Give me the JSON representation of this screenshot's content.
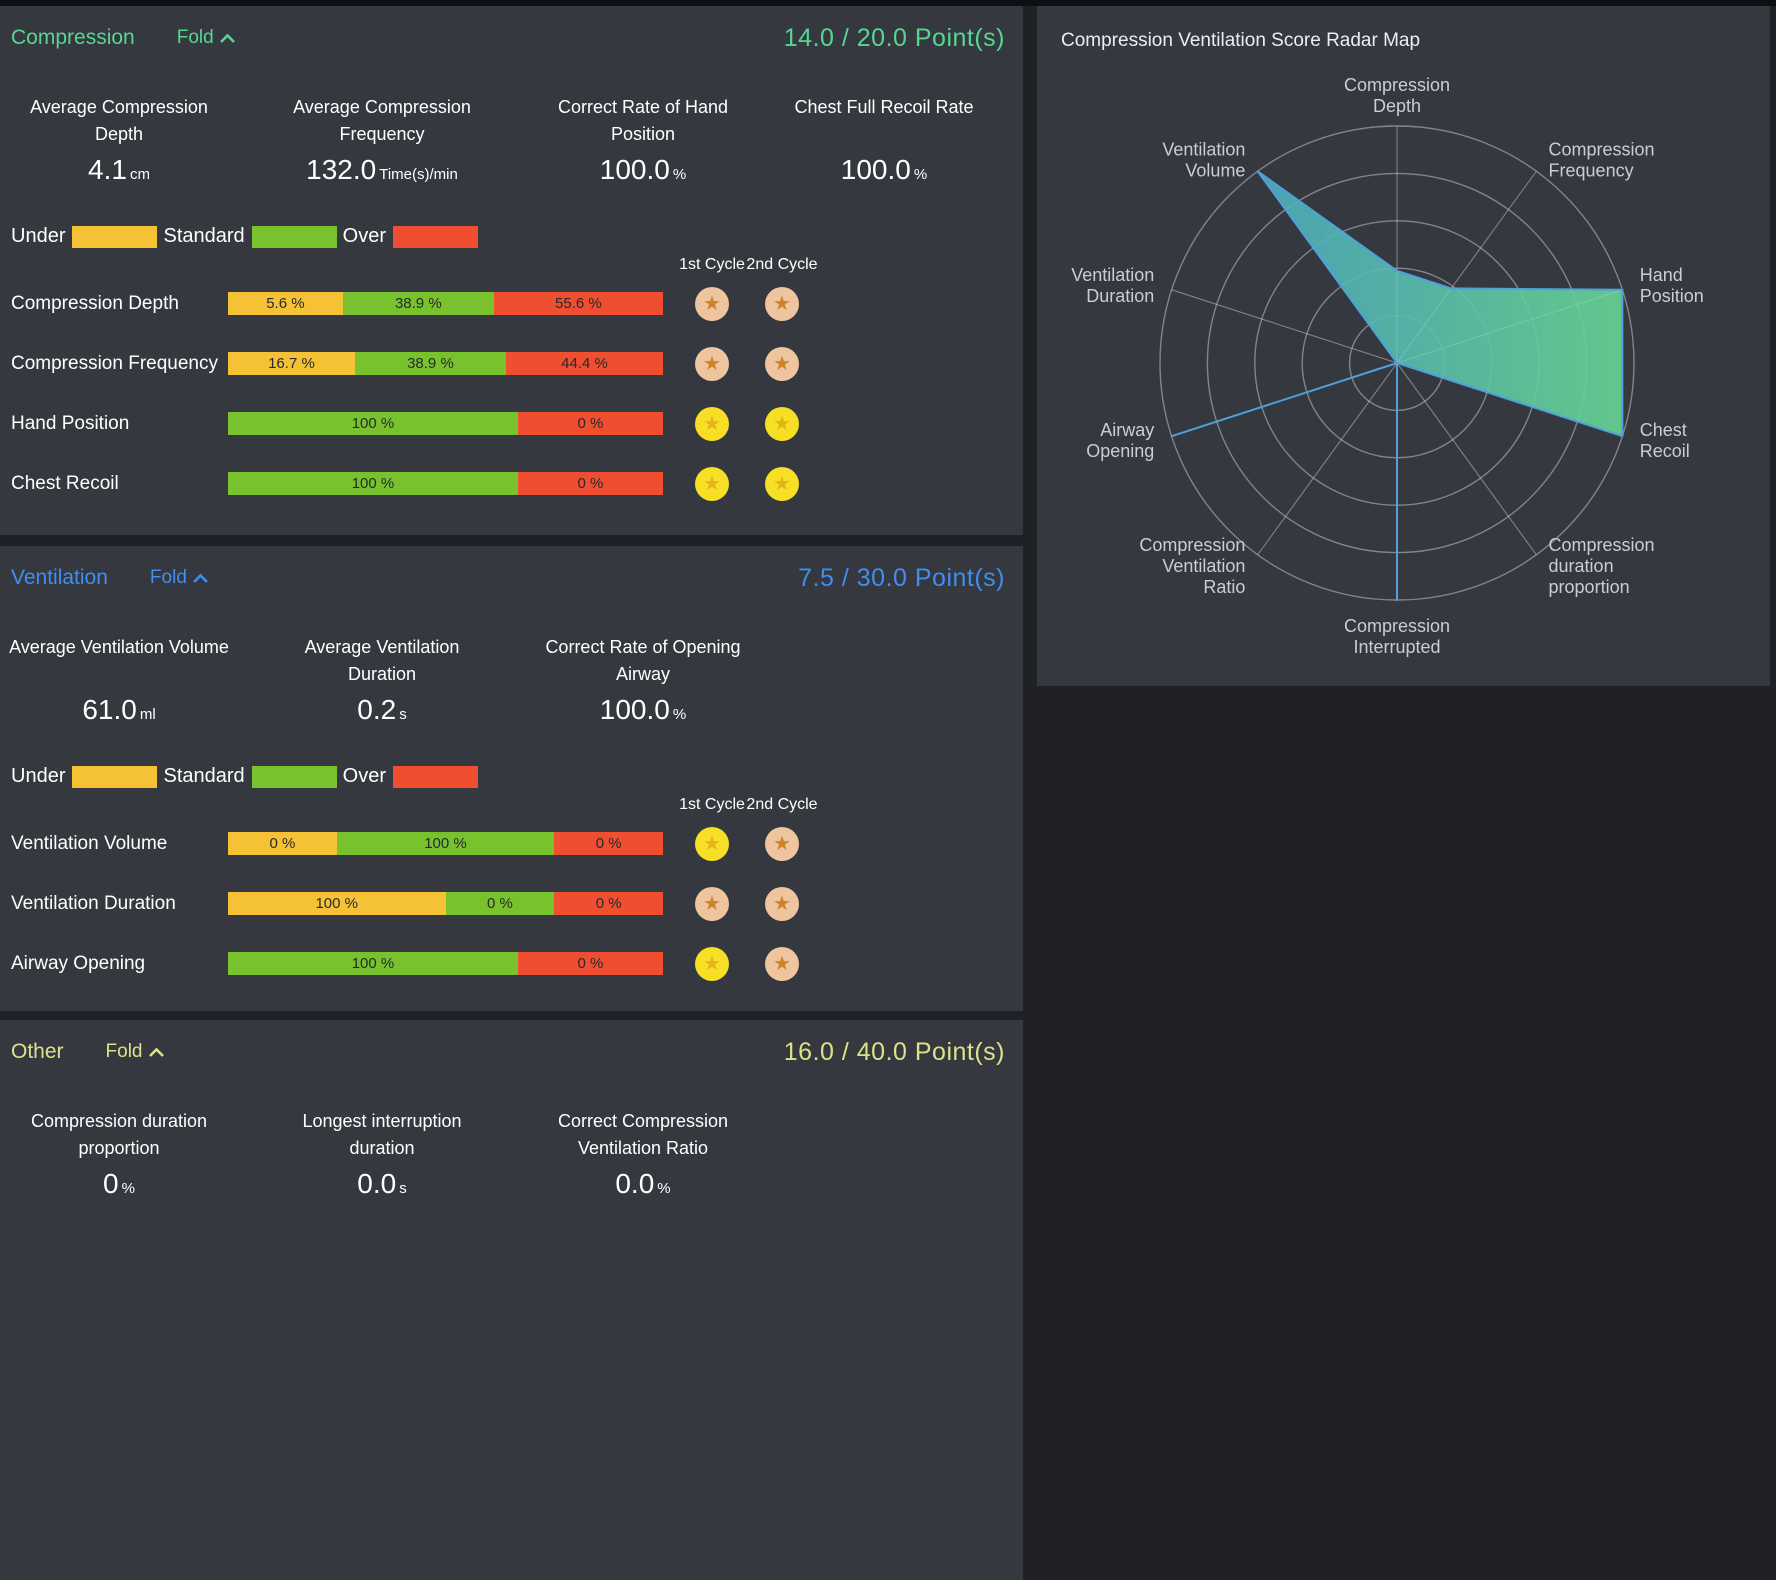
{
  "page": {
    "background": "#1f2126",
    "panel_background": "#35383e"
  },
  "segment_colors": {
    "under": "#f5c235",
    "standard": "#78c32d",
    "over": "#f04e31"
  },
  "star_colors": {
    "gold": {
      "bg": "#f7df26",
      "star": "#e2b517"
    },
    "bronze": {
      "bg": "#eec59e",
      "star": "#cd8427"
    }
  },
  "sections": [
    {
      "id": "compression",
      "accent": "#55d792",
      "title": "Compression",
      "fold_label": "Fold",
      "score": "14.0",
      "score_total": "20.0",
      "score_suffix": "Point(s)",
      "metrics": [
        {
          "lines": [
            "Average Compression",
            "Depth"
          ],
          "value": "4.1",
          "unit": "cm"
        },
        {
          "lines": [
            "Average Compression",
            "Frequency"
          ],
          "value": "132.0",
          "unit": "Time(s)/min"
        },
        {
          "lines": [
            "Correct Rate of Hand",
            "Position"
          ],
          "value": "100.0",
          "unit": "%"
        },
        {
          "lines": [
            "Chest Full Recoil Rate"
          ],
          "value": "100.0",
          "unit": "%"
        }
      ],
      "legend": [
        {
          "label": "Under",
          "type": "under"
        },
        {
          "label": "Standard",
          "type": "standard"
        },
        {
          "label": "Over",
          "type": "over"
        }
      ],
      "cycle_headers": [
        "1st Cycle",
        "2nd Cycle"
      ],
      "rows": [
        {
          "label": "Compression Depth",
          "segments": [
            {
              "type": "under",
              "value": 5.6,
              "text": "5.6 %"
            },
            {
              "type": "standard",
              "value": 38.9,
              "text": "38.9 %"
            },
            {
              "type": "over",
              "value": 55.6,
              "text": "55.6 %"
            }
          ],
          "stars": [
            "bronze",
            "bronze"
          ]
        },
        {
          "label": "Compression Frequency",
          "segments": [
            {
              "type": "under",
              "value": 16.7,
              "text": "16.7 %"
            },
            {
              "type": "standard",
              "value": 38.9,
              "text": "38.9 %"
            },
            {
              "type": "over",
              "value": 44.4,
              "text": "44.4 %"
            }
          ],
          "stars": [
            "bronze",
            "bronze"
          ]
        },
        {
          "label": "Hand Position",
          "segments": [
            {
              "type": "standard",
              "value": 100,
              "text": "100 %"
            },
            {
              "type": "over",
              "value": 0,
              "text": "0 %"
            }
          ],
          "stars": [
            "gold",
            "gold"
          ]
        },
        {
          "label": "Chest Recoil",
          "segments": [
            {
              "type": "standard",
              "value": 100,
              "text": "100 %"
            },
            {
              "type": "over",
              "value": 0,
              "text": "0 %"
            }
          ],
          "stars": [
            "gold",
            "gold"
          ]
        }
      ]
    },
    {
      "id": "ventilation",
      "accent": "#3f8ef2",
      "title": "Ventilation",
      "fold_label": "Fold",
      "score": "7.5",
      "score_total": "30.0",
      "score_suffix": "Point(s)",
      "metrics": [
        {
          "lines": [
            "Average Ventilation Volume"
          ],
          "value": "61.0",
          "unit": "ml"
        },
        {
          "lines": [
            "Average Ventilation",
            "Duration"
          ],
          "value": "0.2",
          "unit": "s"
        },
        {
          "lines": [
            "Correct Rate of Opening",
            "Airway"
          ],
          "value": "100.0",
          "unit": "%"
        }
      ],
      "legend": [
        {
          "label": "Under",
          "type": "under"
        },
        {
          "label": "Standard",
          "type": "standard"
        },
        {
          "label": "Over",
          "type": "over"
        }
      ],
      "cycle_headers": [
        "1st Cycle",
        "2nd Cycle"
      ],
      "rows": [
        {
          "label": "Ventilation Volume",
          "segments": [
            {
              "type": "under",
              "value": 0,
              "text": "0 %"
            },
            {
              "type": "standard",
              "value": 100,
              "text": "100 %"
            },
            {
              "type": "over",
              "value": 0,
              "text": "0 %"
            }
          ],
          "stars": [
            "gold",
            "bronze"
          ]
        },
        {
          "label": "Ventilation Duration",
          "segments": [
            {
              "type": "under",
              "value": 100,
              "text": "100 %"
            },
            {
              "type": "standard",
              "value": 0,
              "text": "0 %"
            },
            {
              "type": "over",
              "value": 0,
              "text": "0 %"
            }
          ],
          "stars": [
            "bronze",
            "bronze"
          ]
        },
        {
          "label": "Airway Opening",
          "segments": [
            {
              "type": "standard",
              "value": 100,
              "text": "100 %"
            },
            {
              "type": "over",
              "value": 0,
              "text": "0 %"
            }
          ],
          "stars": [
            "gold",
            "bronze"
          ]
        }
      ]
    },
    {
      "id": "other",
      "accent": "#dde289",
      "title": "Other",
      "fold_label": "Fold",
      "score": "16.0",
      "score_total": "40.0",
      "score_suffix": "Point(s)",
      "metrics": [
        {
          "lines": [
            "Compression duration",
            "proportion"
          ],
          "value": "0",
          "unit": "%"
        },
        {
          "lines": [
            "Longest interruption",
            "duration"
          ],
          "value": "0.0",
          "unit": "s"
        },
        {
          "lines": [
            "Correct Compression",
            "Ventilation Ratio"
          ],
          "value": "0.0",
          "unit": "%"
        }
      ],
      "legend": [],
      "cycle_headers": [],
      "rows": []
    }
  ],
  "radar": {
    "title": "Compression Ventilation Score Radar Map",
    "ring_color": "#8d929b",
    "spoke_color": "#b9bfc7",
    "label_color": "#c9ced4",
    "stroke_color": "#4fa0dc",
    "fill_gradient": [
      "#48a4ca",
      "#67d694"
    ],
    "rings": 5
  },
  "chart_data": {
    "type": "radar",
    "title": "Compression Ventilation Score Radar Map",
    "max": 100,
    "rings": 5,
    "axes": [
      [
        "Compression",
        "Depth"
      ],
      [
        "Compression",
        "Frequency"
      ],
      [
        "Hand",
        "Position"
      ],
      [
        "Chest",
        "Recoil"
      ],
      [
        "Compression",
        "duration",
        "proportion"
      ],
      [
        "Compression",
        "Interrupted"
      ],
      [
        "Compression",
        "Ventilation",
        "Ratio"
      ],
      [
        "Airway",
        "Opening"
      ],
      [
        "Ventilation",
        "Duration"
      ],
      [
        "Ventilation",
        "Volume"
      ]
    ],
    "values": [
      38.9,
      38.9,
      100,
      100,
      0,
      100,
      0,
      100,
      0,
      100
    ]
  }
}
